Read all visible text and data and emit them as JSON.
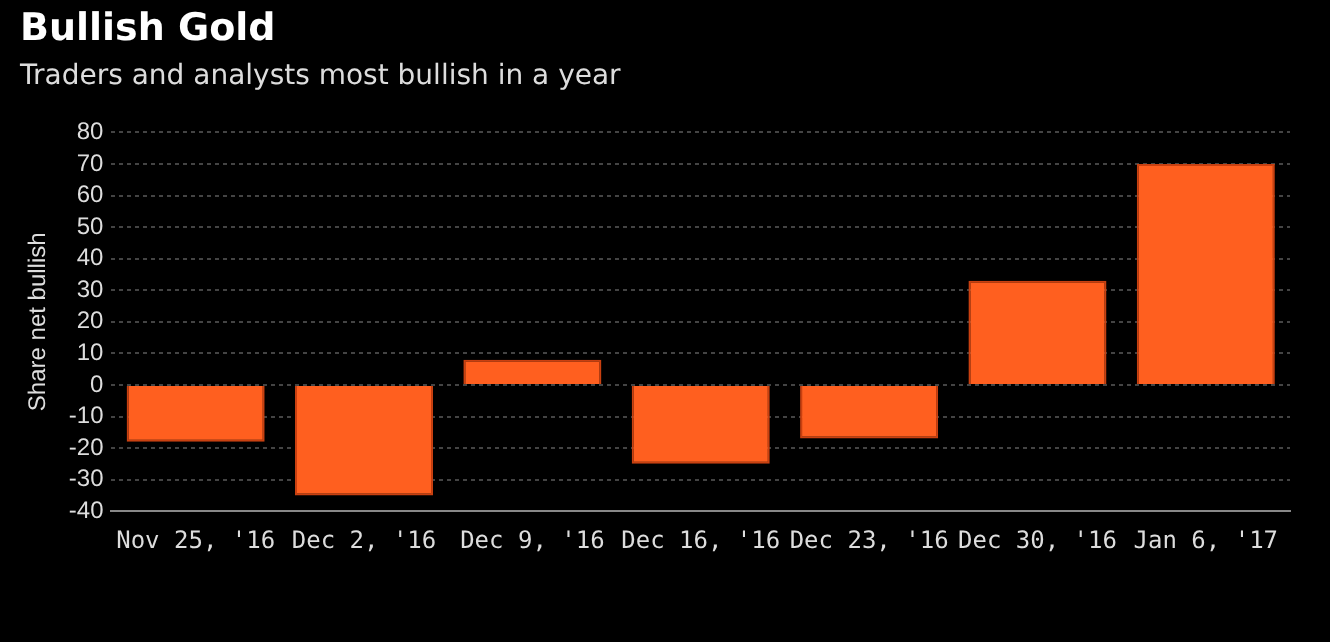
{
  "chart_data": {
    "type": "bar",
    "title": "Bullish Gold",
    "subtitle": "Traders and analysts most bullish in a year",
    "ylabel": "Share net bullish",
    "categories": [
      "Nov 25, '16",
      "Dec 2, '16",
      "Dec 9, '16",
      "Dec 16, '16",
      "Dec 23, '16",
      "Dec 30, '16",
      "Jan 6, '17"
    ],
    "values": [
      -18,
      -35,
      8,
      -25,
      -17,
      33,
      70
    ],
    "color": "#ff5f1f",
    "ylim": [
      -40,
      80
    ],
    "yticks": [
      -40,
      -30,
      -20,
      -10,
      0,
      10,
      20,
      30,
      40,
      50,
      60,
      70,
      80
    ],
    "grid": "y"
  }
}
